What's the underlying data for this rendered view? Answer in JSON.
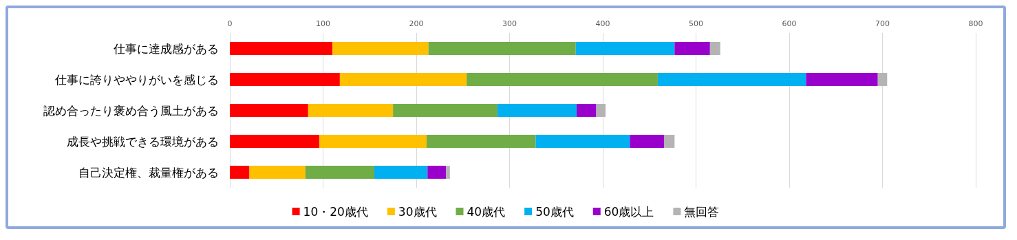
{
  "chart_data": {
    "type": "bar",
    "orientation": "horizontal",
    "stacked": true,
    "categories": [
      "仕事に達成感がある",
      "仕事に誇りややりがいを感じる",
      "認め合ったり褒め合う風土がある",
      "成長や挑戦できる環境がある",
      "自己決定権、裁量権がある"
    ],
    "series": [
      {
        "name": "10・20歳代",
        "color": "#ff0000",
        "values": [
          110,
          118,
          84,
          96,
          21
        ]
      },
      {
        "name": "30歳代",
        "color": "#ffc000",
        "values": [
          103,
          136,
          91,
          115,
          60
        ]
      },
      {
        "name": "40歳代",
        "color": "#70ad47",
        "values": [
          158,
          205,
          112,
          117,
          74
        ]
      },
      {
        "name": "50歳代",
        "color": "#00b0f0",
        "values": [
          106,
          159,
          85,
          101,
          57
        ]
      },
      {
        "name": "60歳以上",
        "color": "#9900cc",
        "values": [
          38,
          77,
          21,
          37,
          20
        ]
      },
      {
        "name": "無回答",
        "color": "#b4b4b4",
        "values": [
          11,
          10,
          10,
          11,
          4
        ]
      }
    ],
    "xlim": [
      0,
      800
    ],
    "xticks": [
      0,
      100,
      200,
      300,
      400,
      500,
      600,
      700,
      800
    ],
    "grid": "x",
    "legend": "bottom"
  }
}
